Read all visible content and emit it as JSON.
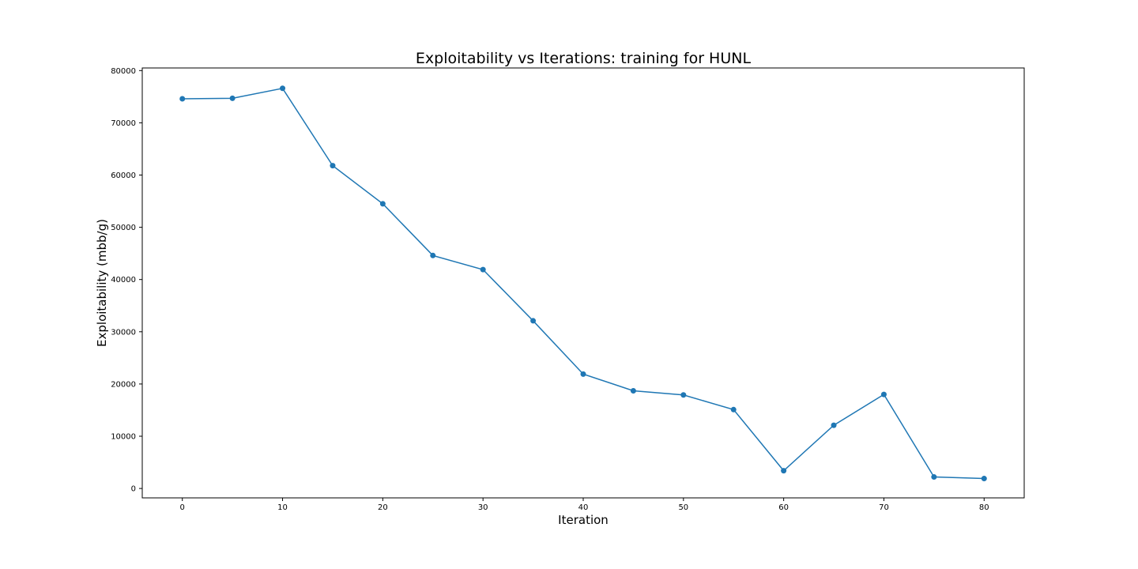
{
  "chart_data": {
    "type": "line",
    "title": "Exploitability vs Iterations: training for HUNL",
    "xlabel": "Iteration",
    "ylabel": "Exploitability (mbb/g)",
    "xlim": [
      -4,
      84
    ],
    "ylim": [
      -1800,
      80500
    ],
    "xticks": [
      0,
      10,
      20,
      30,
      40,
      50,
      60,
      70,
      80
    ],
    "yticks": [
      0,
      10000,
      20000,
      30000,
      40000,
      50000,
      60000,
      70000,
      80000
    ],
    "grid": false,
    "series": [
      {
        "color": "#1f77b4",
        "marker": "circle",
        "x": [
          0,
          5,
          10,
          15,
          20,
          25,
          30,
          35,
          40,
          45,
          50,
          55,
          60,
          65,
          70,
          75,
          80
        ],
        "y": [
          74600,
          74700,
          76600,
          61800,
          54500,
          44600,
          41900,
          32100,
          21900,
          18700,
          17900,
          15100,
          3400,
          12100,
          18000,
          2200,
          1900
        ]
      }
    ]
  }
}
